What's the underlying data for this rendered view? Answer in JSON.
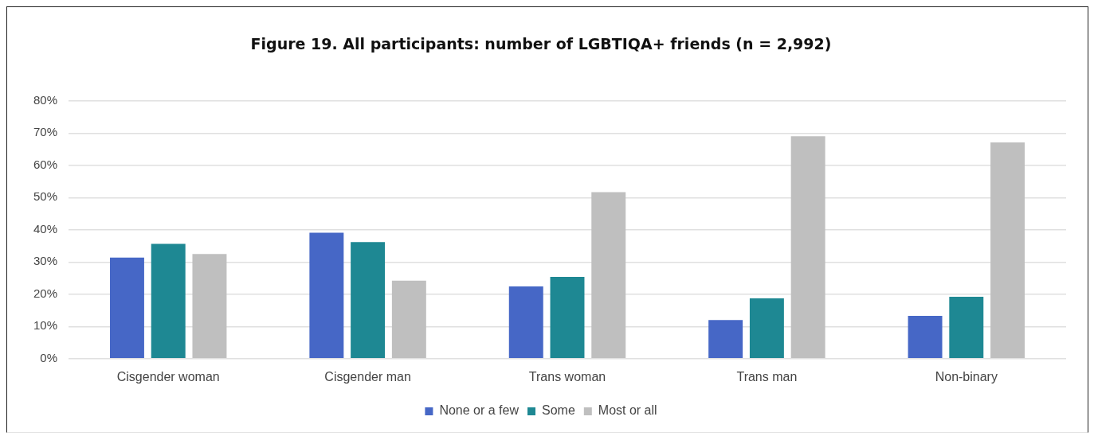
{
  "chart_data": {
    "type": "bar",
    "title": "Figure 19. All participants: number of LGBTIQA+ friends (n = 2,992)",
    "categories": [
      "Cisgender woman",
      "Cisgender man",
      "Trans woman",
      "Trans man",
      "Non-binary"
    ],
    "series": [
      {
        "name": "None or a few",
        "color": "#4667c6",
        "values": [
          31.4,
          39.1,
          22.4,
          12.0,
          13.3
        ]
      },
      {
        "name": "Some",
        "color": "#1e8893",
        "values": [
          35.6,
          36.2,
          25.4,
          18.7,
          19.2
        ]
      },
      {
        "name": "Most or all",
        "color": "#bfbfbf",
        "values": [
          32.5,
          24.2,
          51.7,
          69.0,
          67.1
        ]
      }
    ],
    "ylim": [
      0,
      80
    ],
    "yticks": [
      {
        "value": 0,
        "label": "0%"
      },
      {
        "value": 10,
        "label": "10%"
      },
      {
        "value": 20,
        "label": "20%"
      },
      {
        "value": 30,
        "label": "30%"
      },
      {
        "value": 40,
        "label": "40%"
      },
      {
        "value": 50,
        "label": "50%"
      },
      {
        "value": 60,
        "label": "60%"
      },
      {
        "value": 70,
        "label": "70%"
      },
      {
        "value": 80,
        "label": "80%"
      }
    ],
    "grid": "y",
    "legend": "bottom"
  }
}
